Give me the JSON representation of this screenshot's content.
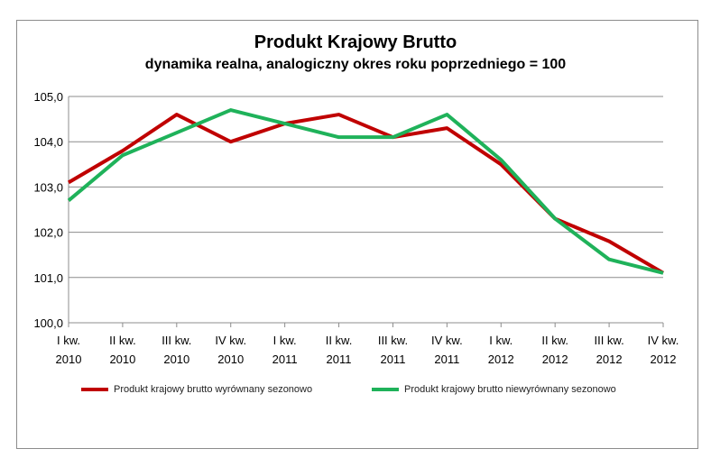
{
  "chart_data": {
    "type": "line",
    "title": "Produkt Krajowy Brutto",
    "subtitle": "dynamika realna, analogiczny okres roku poprzedniego = 100",
    "categories": [
      [
        "I kw.",
        "2010"
      ],
      [
        "II kw.",
        "2010"
      ],
      [
        "III kw.",
        "2010"
      ],
      [
        "IV kw.",
        "2010"
      ],
      [
        "I kw.",
        "2011"
      ],
      [
        "II kw.",
        "2011"
      ],
      [
        "III kw.",
        "2011"
      ],
      [
        "IV kw.",
        "2011"
      ],
      [
        "I kw.",
        "2012"
      ],
      [
        "II kw.",
        "2012"
      ],
      [
        "III kw.",
        "2012"
      ],
      [
        "IV kw.",
        "2012"
      ]
    ],
    "ylim": [
      100,
      105
    ],
    "yticks": [
      "100,0",
      "101,0",
      "102,0",
      "103,0",
      "104,0",
      "105,0"
    ],
    "grid": true,
    "legend_position": "bottom",
    "series": [
      {
        "name": "Produkt krajowy brutto wyrównany sezonowo",
        "color": "#c00000",
        "values": [
          103.1,
          103.8,
          104.6,
          104.0,
          104.4,
          104.6,
          104.1,
          104.3,
          103.5,
          102.3,
          101.8,
          101.1
        ]
      },
      {
        "name": "Produkt krajowy brutto niewyrównany sezonowo",
        "color": "#1fb25a",
        "values": [
          102.7,
          103.7,
          104.2,
          104.7,
          104.4,
          104.1,
          104.1,
          104.6,
          103.6,
          102.3,
          101.4,
          101.1
        ]
      }
    ]
  }
}
